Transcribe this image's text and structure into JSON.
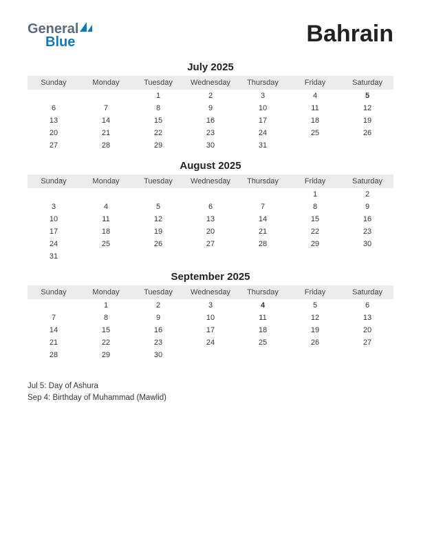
{
  "header": {
    "logo_line1": "General",
    "logo_line2": "Blue",
    "country": "Bahrain"
  },
  "colors": {
    "background": "#ffffff",
    "header_bg": "#ececec",
    "text": "#333333",
    "holiday": "#cc0000",
    "logo_general": "#5a6b7a",
    "logo_blue": "#0e7bb8",
    "logo_icon": "#0e7bb8"
  },
  "day_headers": [
    "Sunday",
    "Monday",
    "Tuesday",
    "Wednesday",
    "Thursday",
    "Friday",
    "Saturday"
  ],
  "months": [
    {
      "title": "July 2025",
      "weeks": [
        [
          "",
          "",
          "1",
          "2",
          "3",
          "4",
          "5"
        ],
        [
          "6",
          "7",
          "8",
          "9",
          "10",
          "11",
          "12"
        ],
        [
          "13",
          "14",
          "15",
          "16",
          "17",
          "18",
          "19"
        ],
        [
          "20",
          "21",
          "22",
          "23",
          "24",
          "25",
          "26"
        ],
        [
          "27",
          "28",
          "29",
          "30",
          "31",
          "",
          ""
        ]
      ],
      "holidays": [
        "5"
      ]
    },
    {
      "title": "August 2025",
      "weeks": [
        [
          "",
          "",
          "",
          "",
          "",
          "1",
          "2"
        ],
        [
          "3",
          "4",
          "5",
          "6",
          "7",
          "8",
          "9"
        ],
        [
          "10",
          "11",
          "12",
          "13",
          "14",
          "15",
          "16"
        ],
        [
          "17",
          "18",
          "19",
          "20",
          "21",
          "22",
          "23"
        ],
        [
          "24",
          "25",
          "26",
          "27",
          "28",
          "29",
          "30"
        ],
        [
          "31",
          "",
          "",
          "",
          "",
          "",
          ""
        ]
      ],
      "holidays": []
    },
    {
      "title": "September 2025",
      "weeks": [
        [
          "",
          "1",
          "2",
          "3",
          "4",
          "5",
          "6"
        ],
        [
          "7",
          "8",
          "9",
          "10",
          "11",
          "12",
          "13"
        ],
        [
          "14",
          "15",
          "16",
          "17",
          "18",
          "19",
          "20"
        ],
        [
          "21",
          "22",
          "23",
          "24",
          "25",
          "26",
          "27"
        ],
        [
          "28",
          "29",
          "30",
          "",
          "",
          "",
          ""
        ]
      ],
      "holidays": [
        "4"
      ]
    }
  ],
  "notes": [
    "Jul 5: Day of Ashura",
    "Sep 4: Birthday of Muhammad (Mawlid)"
  ]
}
